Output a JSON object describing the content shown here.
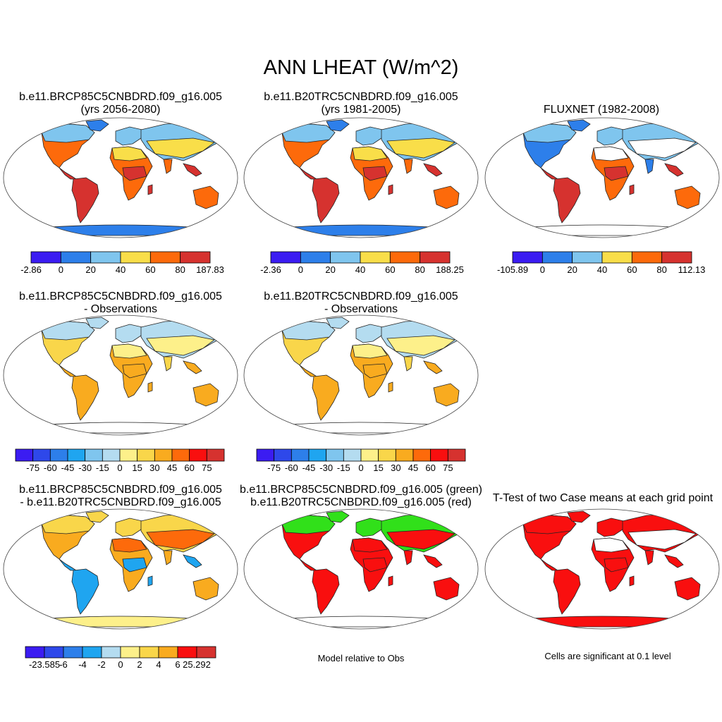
{
  "main_title": "ANN LHEAT (W/m^2)",
  "panels": [
    {
      "title1": "b.e11.BRCP85C5CNBDRD.f09_g16.005",
      "title2": "(yrs 2056-2080)"
    },
    {
      "title1": "b.e11.B20TRC5CNBDRD.f09_g16.005",
      "title2": "(yrs 1981-2005)"
    },
    {
      "title1": "",
      "title2": "FLUXNET (1982-2008)"
    },
    {
      "title1": "b.e11.BRCP85C5CNBDRD.f09_g16.005",
      "title2": "- Observations"
    },
    {
      "title1": "b.e11.B20TRC5CNBDRD.f09_g16.005",
      "title2": "- Observations"
    },
    {
      "title1": "b.e11.BRCP85C5CNBDRD.f09_g16.005",
      "title2": "- b.e11.B20TRC5CNBDRD.f09_g16.005"
    },
    {
      "title1": "b.e11.BRCP85C5CNBDRD.f09_g16.005 (green)",
      "title2": "b.e11.B20TRC5CNBDRD.f09_g16.005 (red)"
    },
    {
      "title1": "",
      "title2": "T-Test of two Case means at each grid point"
    }
  ],
  "colorbars": [
    {
      "colors": [
        "#3b1cf2",
        "#2d7fea",
        "#7fc5ee",
        "#f9de49",
        "#fd6a0b",
        "#d6322f"
      ],
      "labels": [
        "-2.86",
        "0",
        "20",
        "40",
        "60",
        "80",
        "187.83"
      ]
    },
    {
      "colors": [
        "#3b1cf2",
        "#2d7fea",
        "#7fc5ee",
        "#f9de49",
        "#fd6a0b",
        "#d6322f"
      ],
      "labels": [
        "-2.36",
        "0",
        "20",
        "40",
        "60",
        "80",
        "188.25"
      ]
    },
    {
      "colors": [
        "#3b1cf2",
        "#2d7fea",
        "#7fc5ee",
        "#f9de49",
        "#fd6a0b",
        "#d6322f"
      ],
      "labels": [
        "-105.89",
        "0",
        "20",
        "40",
        "60",
        "80",
        "112.13"
      ]
    },
    {
      "colors": [
        "#3b1cf2",
        "#2e48ea",
        "#2d7fea",
        "#1fa5f0",
        "#7fc5ee",
        "#b4dcf0",
        "#fdf08a",
        "#f9d64a",
        "#f9ab1f",
        "#fd6a0b",
        "#f90f0f",
        "#d6322f"
      ],
      "labels": [
        "-75",
        "-60",
        "-45",
        "-30",
        "-15",
        "0",
        "15",
        "30",
        "45",
        "60",
        "75"
      ]
    },
    {
      "colors": [
        "#3b1cf2",
        "#2e48ea",
        "#2d7fea",
        "#1fa5f0",
        "#7fc5ee",
        "#b4dcf0",
        "#fdf08a",
        "#f9d64a",
        "#f9ab1f",
        "#fd6a0b",
        "#f90f0f",
        "#d6322f"
      ],
      "labels": [
        "-75",
        "-60",
        "-45",
        "-30",
        "-15",
        "0",
        "15",
        "30",
        "45",
        "60",
        "75"
      ]
    },
    {
      "colors": [
        "#3b1cf2",
        "#2e48ea",
        "#2d7fea",
        "#1fa5f0",
        "#b4dcf0",
        "#fdf08a",
        "#f9d64a",
        "#f9ab1f",
        "#f90f0f",
        "#d6322f"
      ],
      "labels": [
        "-23.585",
        "-6",
        "-4",
        "-2",
        "0",
        "2",
        "4",
        "6",
        "25.292"
      ]
    }
  ],
  "notes": {
    "model_relative": "Model relative to Obs",
    "significance": "Cells are significant at 0.1 level"
  },
  "map_palettes": [
    {
      "land": "#fd6a0b",
      "north": "#7fc5ee",
      "mid": "#f9de49",
      "tropic": "#d6322f",
      "south": "#fd6a0b",
      "antarctica": "#2d7fea",
      "arctic": "#2d7fea"
    },
    {
      "land": "#fd6a0b",
      "north": "#7fc5ee",
      "mid": "#f9de49",
      "tropic": "#d6322f",
      "south": "#fd6a0b",
      "antarctica": "#2d7fea",
      "arctic": "#2d7fea"
    },
    {
      "land": "#2d7fea",
      "north": "#7fc5ee",
      "mid": "#ffffff",
      "tropic": "#d6322f",
      "south": "#fd6a0b",
      "antarctica": "none",
      "arctic": "#2d7fea"
    },
    {
      "land": "#f9d64a",
      "north": "#b4dcf0",
      "mid": "#fdf08a",
      "tropic": "#f9ab1f",
      "south": "#f9ab1f",
      "antarctica": "none",
      "arctic": "#b4dcf0"
    },
    {
      "land": "#f9d64a",
      "north": "#b4dcf0",
      "mid": "#fdf08a",
      "tropic": "#f9ab1f",
      "south": "#f9ab1f",
      "antarctica": "none",
      "arctic": "#b4dcf0"
    },
    {
      "land": "#f9ab1f",
      "north": "#f9d64a",
      "mid": "#fd6a0b",
      "tropic": "#1fa5f0",
      "south": "#f9ab1f",
      "antarctica": "#fdf08a",
      "arctic": "#f9d64a"
    },
    {
      "land": "#f90f0f",
      "north": "#31e01a",
      "mid": "#f90f0f",
      "tropic": "#f90f0f",
      "south": "#f90f0f",
      "antarctica": "none",
      "arctic": "#31e01a"
    },
    {
      "land": "#f90f0f",
      "north": "#f90f0f",
      "mid": "#ffffff",
      "tropic": "#f90f0f",
      "south": "#f90f0f",
      "antarctica": "#f90f0f",
      "arctic": "#f90f0f"
    }
  ]
}
